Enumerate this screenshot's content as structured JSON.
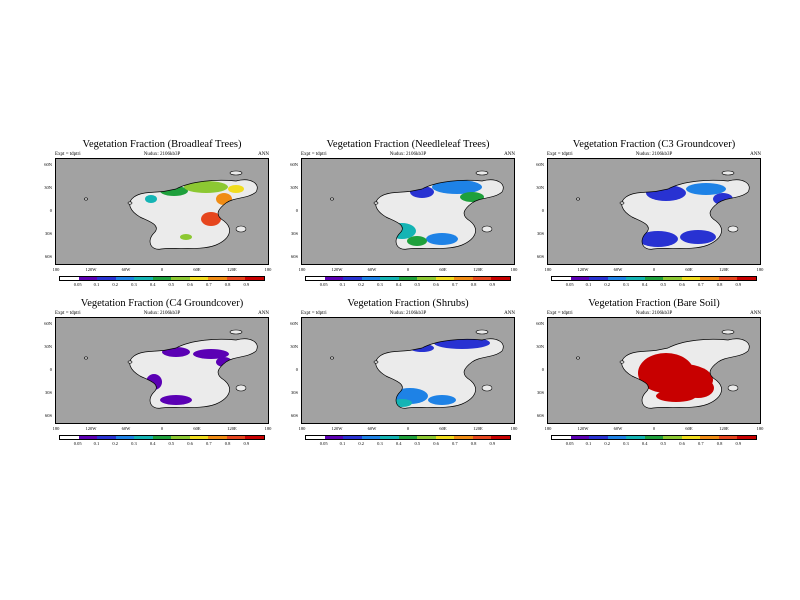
{
  "figure": {
    "expt_label": "Expt = tdptri",
    "mid_label": "Nudux: 2106kb3P",
    "ann_label": "ANN",
    "lat_labels": [
      "60N",
      "30N",
      "0",
      "30S",
      "60S"
    ],
    "lon_labels": [
      "180",
      "120W",
      "60W",
      "0",
      "60E",
      "120E",
      "180"
    ],
    "colorbar_labels": [
      "0.05",
      "0.1",
      "0.2",
      "0.3",
      "0.4",
      "0.5",
      "0.6",
      "0.7",
      "0.8",
      "0.9"
    ],
    "colorbar_colors": [
      "#ffffff",
      "#5b00b4",
      "#2832d2",
      "#1e82e6",
      "#14b4b4",
      "#1ea03c",
      "#8cc832",
      "#f0dc1e",
      "#f08c14",
      "#e6461e",
      "#c80000"
    ],
    "ocean_color": "#a2a2a2",
    "land_color": "#ebebeb"
  },
  "panels": [
    {
      "title": "Vegetation Fraction (Broadleaf Trees)",
      "map_title": "Vegetation Fraction (Broadleaf Trees)"
    },
    {
      "title": "Vegetation Fraction (Needleleaf Trees)",
      "map_title": "Vegetation Fraction (Needleleaf Trees)"
    },
    {
      "title": "Vegetation Fraction (C3 Groundcover)",
      "map_title": "Vegetation Fraction (C3 Groundcover)"
    },
    {
      "title": "Vegetation Fraction (C4 Groundcover)",
      "map_title": "Vegetation Fraction (C4 Groundcover)"
    },
    {
      "title": "Vegetation Fraction (Shrubs)",
      "map_title": "Vegetation Fraction (Shrubs)"
    },
    {
      "title": "Vegetation Fraction (Bare Soil)",
      "map_title": "Vegetation Fraction (Bare Soil)"
    }
  ]
}
